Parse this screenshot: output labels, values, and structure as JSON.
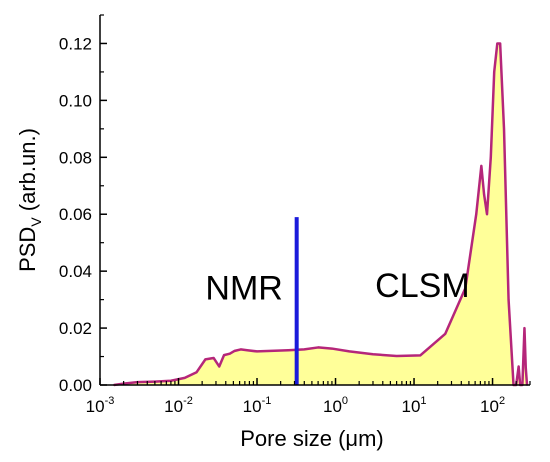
{
  "chart_data": {
    "type": "area",
    "xlabel": "Pore  size  (μm)",
    "ylabel": "PSD",
    "ylabel_subscript": "V",
    "ylabel_suffix": "  (arb.un.)",
    "xscale": "log",
    "xlim": [
      0.001,
      300
    ],
    "ylim": [
      0,
      0.13
    ],
    "yticks": [
      "0.00",
      "0.02",
      "0.04",
      "0.06",
      "0.08",
      "0.10",
      "0.12"
    ],
    "ytick_values": [
      0,
      0.02,
      0.04,
      0.06,
      0.08,
      0.1,
      0.12
    ],
    "xticks": [
      {
        "base": "10",
        "exp": "-3",
        "value": 0.001
      },
      {
        "base": "10",
        "exp": "-2",
        "value": 0.01
      },
      {
        "base": "10",
        "exp": "-1",
        "value": 0.1
      },
      {
        "base": "10",
        "exp": "0",
        "value": 1
      },
      {
        "base": "10",
        "exp": "1",
        "value": 10
      },
      {
        "base": "10",
        "exp": "2",
        "value": 100
      }
    ],
    "series": [
      {
        "line_color": "#b5267a",
        "fill_color": "#ffff99",
        "x": [
          0.0015,
          0.002,
          0.003,
          0.005,
          0.008,
          0.012,
          0.017,
          0.022,
          0.028,
          0.033,
          0.038,
          0.045,
          0.052,
          0.062,
          0.075,
          0.1,
          0.15,
          0.25,
          0.4,
          0.6,
          0.9,
          1.5,
          3,
          6,
          12,
          25,
          45,
          62,
          72,
          78,
          85,
          95,
          105,
          115,
          125,
          140,
          160,
          185,
          200,
          215,
          225,
          240,
          255,
          265,
          275
        ],
        "y": [
          0.0,
          0.0005,
          0.001,
          0.0012,
          0.0015,
          0.0025,
          0.0045,
          0.009,
          0.0095,
          0.0065,
          0.0105,
          0.011,
          0.012,
          0.0125,
          0.0122,
          0.0118,
          0.012,
          0.0122,
          0.0125,
          0.0132,
          0.0128,
          0.0118,
          0.0108,
          0.0102,
          0.0104,
          0.018,
          0.034,
          0.06,
          0.077,
          0.067,
          0.06,
          0.08,
          0.11,
          0.12,
          0.12,
          0.09,
          0.03,
          0.0,
          0.0,
          0.0065,
          0.0,
          0.0,
          0.02,
          0.006,
          0.0
        ]
      }
    ],
    "divider": {
      "x": 0.32,
      "y_top": 0.059,
      "color": "#1a1adb"
    },
    "annotations": [
      {
        "text": "NMR",
        "x": 0.022,
        "y": 0.03
      },
      {
        "text": "CLSM",
        "x": 3.2,
        "y": 0.031
      }
    ]
  }
}
